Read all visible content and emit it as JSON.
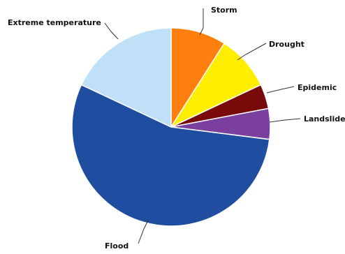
{
  "chart_data": {
    "type": "pie",
    "title": "",
    "start_angle_deg": -90,
    "direction": "clockwise",
    "slices": [
      {
        "label": "Storm",
        "value": 9,
        "color": "#FF7F0E"
      },
      {
        "label": "Drought",
        "value": 9,
        "color": "#FFEE00"
      },
      {
        "label": "Epidemic",
        "value": 4,
        "color": "#7A0A0A"
      },
      {
        "label": "Landslide",
        "value": 5,
        "color": "#7B3FA0"
      },
      {
        "label": "Flood",
        "value": 55,
        "color": "#1F4EA0"
      },
      {
        "label": "Extreme temperature",
        "value": 18,
        "color": "#BFE0F7"
      }
    ]
  }
}
